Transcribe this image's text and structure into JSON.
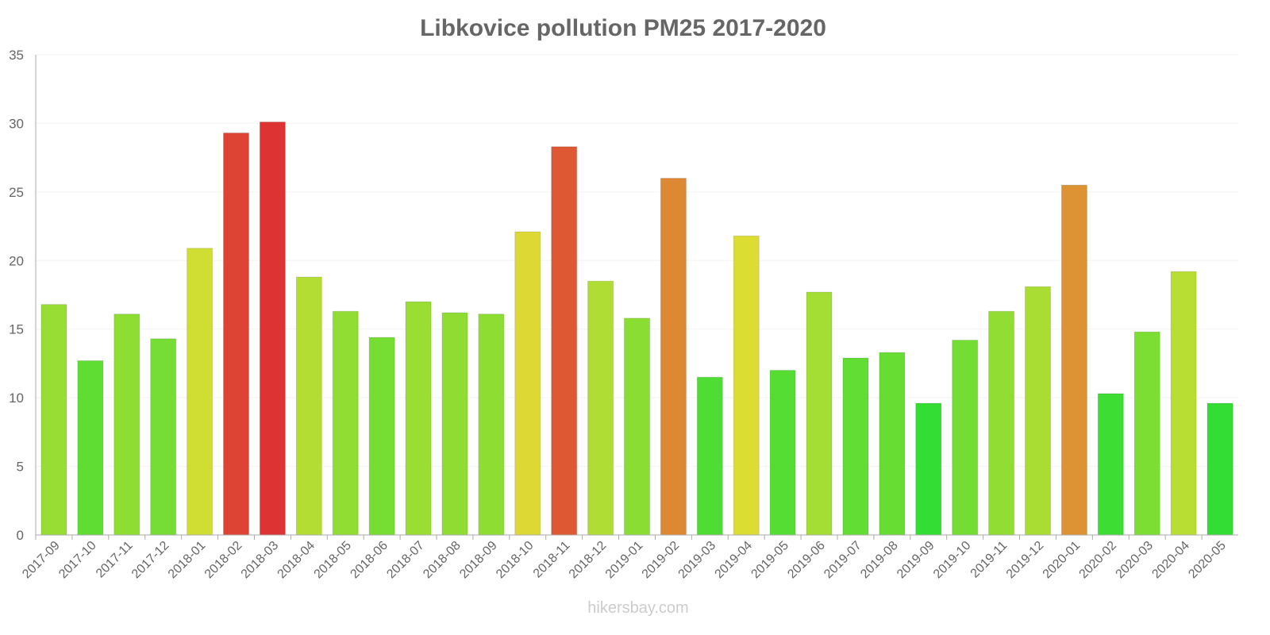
{
  "chart_data": {
    "type": "bar",
    "title": "Libkovice pollution PM25 2017-2020",
    "xlabel": "",
    "ylabel": "",
    "ylim": [
      0,
      35
    ],
    "yticks": [
      0,
      5,
      10,
      15,
      20,
      25,
      30,
      35
    ],
    "grid": true,
    "categories": [
      "2017-09",
      "2017-10",
      "2017-11",
      "2017-12",
      "2018-01",
      "2018-02",
      "2018-03",
      "2018-04",
      "2018-05",
      "2018-06",
      "2018-07",
      "2018-08",
      "2018-09",
      "2018-10",
      "2018-11",
      "2018-12",
      "2019-01",
      "2019-02",
      "2019-03",
      "2019-04",
      "2019-05",
      "2019-06",
      "2019-07",
      "2019-08",
      "2019-09",
      "2019-10",
      "2019-11",
      "2019-12",
      "2020-01",
      "2020-02",
      "2020-03",
      "2020-04",
      "2020-05"
    ],
    "values": [
      16.8,
      12.7,
      16.1,
      14.3,
      20.9,
      29.3,
      30.1,
      18.8,
      16.3,
      14.4,
      17.0,
      16.2,
      16.1,
      22.1,
      28.3,
      18.5,
      15.8,
      26.0,
      11.5,
      21.8,
      12.0,
      17.7,
      12.9,
      13.3,
      9.6,
      14.2,
      16.3,
      18.1,
      25.5,
      10.3,
      14.8,
      19.2,
      9.6
    ]
  },
  "watermark": "hikersbay.com"
}
